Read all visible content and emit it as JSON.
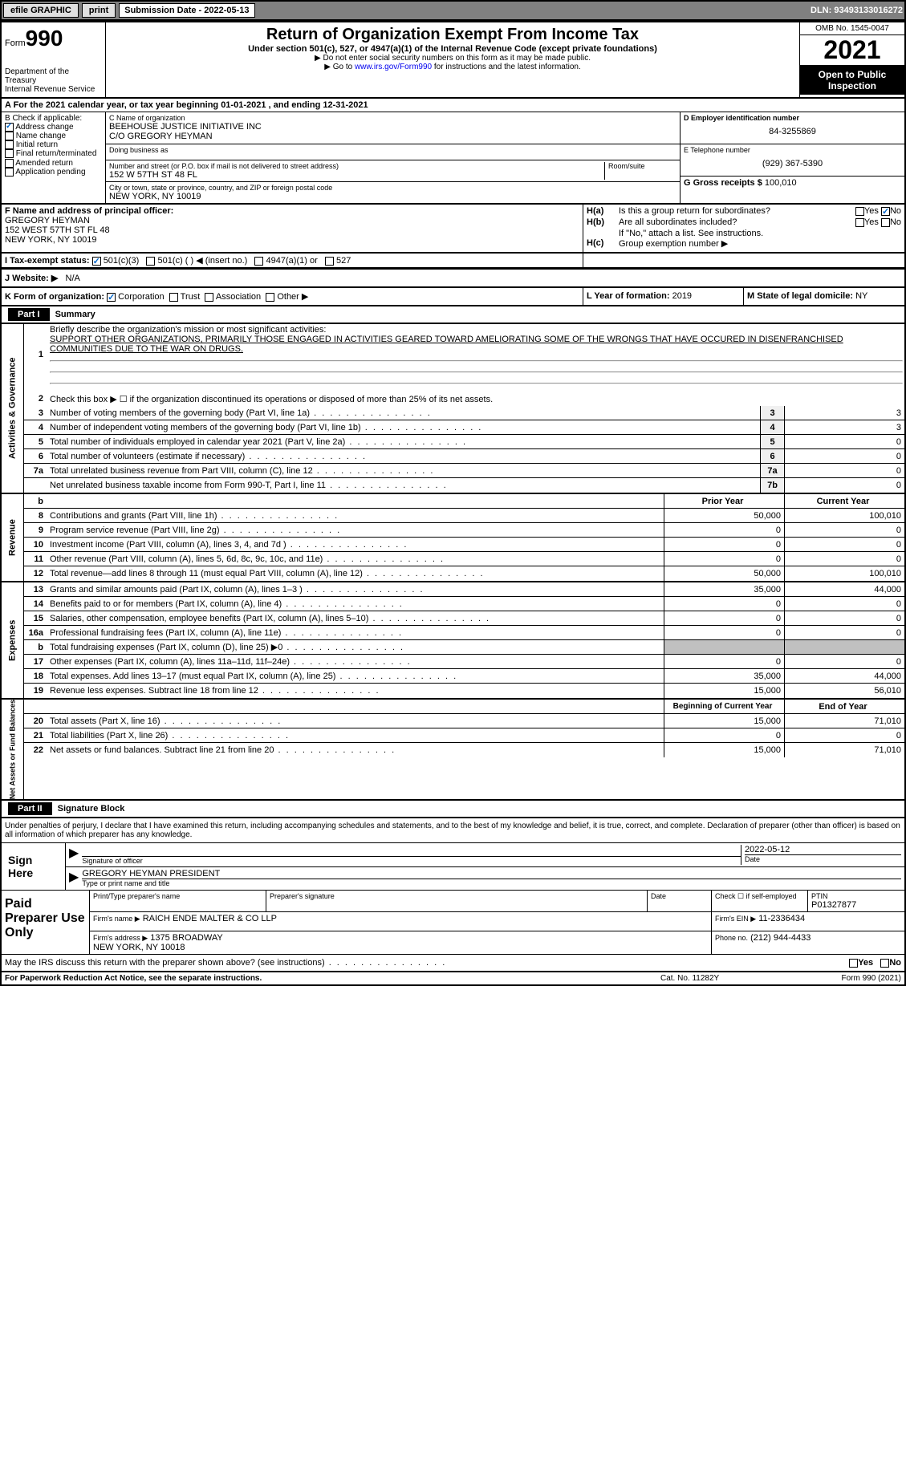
{
  "toolbar": {
    "efile": "efile GRAPHIC",
    "print": "print",
    "sub_label": "Submission Date - 2022-05-13",
    "dln": "DLN: 93493133016272"
  },
  "header": {
    "form_label": "Form",
    "form_num": "990",
    "dept": "Department of the Treasury\nInternal Revenue Service",
    "title": "Return of Organization Exempt From Income Tax",
    "subtitle": "Under section 501(c), 527, or 4947(a)(1) of the Internal Revenue Code (except private foundations)",
    "note1": "▶ Do not enter social security numbers on this form as it may be made public.",
    "note2_pre": "▶ Go to ",
    "note2_link": "www.irs.gov/Form990",
    "note2_post": " for instructions and the latest information.",
    "omb": "OMB No. 1545-0047",
    "year": "2021",
    "open": "Open to Public Inspection"
  },
  "row_a": "A For the 2021 calendar year, or tax year beginning 01-01-2021     , and ending 12-31-2021",
  "section_b": {
    "label": "B Check if applicable:",
    "items": [
      "Address change",
      "Name change",
      "Initial return",
      "Final return/terminated",
      "Amended return",
      "Application pending"
    ]
  },
  "section_c": {
    "name_label": "C Name of organization",
    "name": "BEEHOUSE JUSTICE INITIATIVE INC\nC/O GREGORY HEYMAN",
    "dba_label": "Doing business as",
    "street_label": "Number and street (or P.O. box if mail is not delivered to street address)",
    "room_label": "Room/suite",
    "street": "152 W 57TH ST 48 FL",
    "city_label": "City or town, state or province, country, and ZIP or foreign postal code",
    "city": "NEW YORK, NY  10019"
  },
  "section_d": {
    "label": "D Employer identification number",
    "value": "84-3255869"
  },
  "section_e": {
    "label": "E Telephone number",
    "value": "(929) 367-5390"
  },
  "section_g": {
    "label": "G Gross receipts $",
    "value": "100,010"
  },
  "section_f": {
    "label": "F Name and address of principal officer:",
    "value": "GREGORY HEYMAN\n152 WEST 57TH ST FL 48\nNEW YORK, NY  10019"
  },
  "section_h": {
    "a_label": "H(a)",
    "a_text": "Is this a group return for subordinates?",
    "b_label": "H(b)",
    "b_text": "Are all subordinates included?",
    "b_note": "If \"No,\" attach a list. See instructions.",
    "c_label": "H(c)",
    "c_text": "Group exemption number ▶"
  },
  "row_i": {
    "label": "I   Tax-exempt status:",
    "opts": [
      "501(c)(3)",
      "501(c) (  ) ◀ (insert no.)",
      "4947(a)(1) or",
      "527"
    ]
  },
  "row_j": {
    "label": "J   Website: ▶",
    "value": "N/A"
  },
  "row_k": {
    "k_label": "K Form of organization:",
    "opts": [
      "Corporation",
      "Trust",
      "Association",
      "Other ▶"
    ],
    "l_label": "L Year of formation:",
    "l_value": "2019",
    "m_label": "M State of legal domicile:",
    "m_value": "NY"
  },
  "part1": {
    "header": "Part I",
    "title": "Summary",
    "tabs": {
      "ag": "Activities & Governance",
      "rev": "Revenue",
      "exp": "Expenses",
      "net": "Net Assets or Fund Balances"
    },
    "line1_label": "Briefly describe the organization's mission or most significant activities:",
    "line1_text": "SUPPORT OTHER ORGANIZATIONS, PRIMARILY THOSE ENGAGED IN ACTIVITIES GEARED TOWARD AMELIORATING SOME OF THE WRONGS THAT HAVE OCCURED IN DISENFRANCHISED COMMUNITIES DUE TO THE WAR ON DRUGS.",
    "line2": "Check this box ▶ ☐  if the organization discontinued its operations or disposed of more than 25% of its net assets.",
    "rows_ag": [
      {
        "n": "3",
        "t": "Number of voting members of the governing body (Part VI, line 1a)",
        "b": "3",
        "v": "3"
      },
      {
        "n": "4",
        "t": "Number of independent voting members of the governing body (Part VI, line 1b)",
        "b": "4",
        "v": "3"
      },
      {
        "n": "5",
        "t": "Total number of individuals employed in calendar year 2021 (Part V, line 2a)",
        "b": "5",
        "v": "0"
      },
      {
        "n": "6",
        "t": "Total number of volunteers (estimate if necessary)",
        "b": "6",
        "v": "0"
      },
      {
        "n": "7a",
        "t": "Total unrelated business revenue from Part VIII, column (C), line 12",
        "b": "7a",
        "v": "0"
      },
      {
        "n": "",
        "t": "Net unrelated business taxable income from Form 990-T, Part I, line 11",
        "b": "7b",
        "v": "0"
      }
    ],
    "col_headers": {
      "b": "b",
      "prior": "Prior Year",
      "current": "Current Year"
    },
    "rows_rev": [
      {
        "n": "8",
        "t": "Contributions and grants (Part VIII, line 1h)",
        "p": "50,000",
        "c": "100,010"
      },
      {
        "n": "9",
        "t": "Program service revenue (Part VIII, line 2g)",
        "p": "0",
        "c": "0"
      },
      {
        "n": "10",
        "t": "Investment income (Part VIII, column (A), lines 3, 4, and 7d )",
        "p": "0",
        "c": "0"
      },
      {
        "n": "11",
        "t": "Other revenue (Part VIII, column (A), lines 5, 6d, 8c, 9c, 10c, and 11e)",
        "p": "0",
        "c": "0"
      },
      {
        "n": "12",
        "t": "Total revenue—add lines 8 through 11 (must equal Part VIII, column (A), line 12)",
        "p": "50,000",
        "c": "100,010"
      }
    ],
    "rows_exp": [
      {
        "n": "13",
        "t": "Grants and similar amounts paid (Part IX, column (A), lines 1–3 )",
        "p": "35,000",
        "c": "44,000"
      },
      {
        "n": "14",
        "t": "Benefits paid to or for members (Part IX, column (A), line 4)",
        "p": "0",
        "c": "0"
      },
      {
        "n": "15",
        "t": "Salaries, other compensation, employee benefits (Part IX, column (A), lines 5–10)",
        "p": "0",
        "c": "0"
      },
      {
        "n": "16a",
        "t": "Professional fundraising fees (Part IX, column (A), line 11e)",
        "p": "0",
        "c": "0"
      },
      {
        "n": "b",
        "t": "Total fundraising expenses (Part IX, column (D), line 25) ▶0",
        "p": "",
        "c": "",
        "shaded": true
      },
      {
        "n": "17",
        "t": "Other expenses (Part IX, column (A), lines 11a–11d, 11f–24e)",
        "p": "0",
        "c": "0"
      },
      {
        "n": "18",
        "t": "Total expenses. Add lines 13–17 (must equal Part IX, column (A), line 25)",
        "p": "35,000",
        "c": "44,000"
      },
      {
        "n": "19",
        "t": "Revenue less expenses. Subtract line 18 from line 12",
        "p": "15,000",
        "c": "56,010"
      }
    ],
    "net_headers": {
      "begin": "Beginning of Current Year",
      "end": "End of Year"
    },
    "rows_net": [
      {
        "n": "20",
        "t": "Total assets (Part X, line 16)",
        "p": "15,000",
        "c": "71,010"
      },
      {
        "n": "21",
        "t": "Total liabilities (Part X, line 26)",
        "p": "0",
        "c": "0"
      },
      {
        "n": "22",
        "t": "Net assets or fund balances. Subtract line 21 from line 20",
        "p": "15,000",
        "c": "71,010"
      }
    ]
  },
  "part2": {
    "header": "Part II",
    "title": "Signature Block",
    "declare": "Under penalties of perjury, I declare that I have examined this return, including accompanying schedules and statements, and to the best of my knowledge and belief, it is true, correct, and complete. Declaration of preparer (other than officer) is based on all information of which preparer has any knowledge.",
    "sign_here": "Sign Here",
    "sig_officer": "Signature of officer",
    "sig_date": "2022-05-12",
    "date_label": "Date",
    "officer_name": "GREGORY HEYMAN  PRESIDENT",
    "officer_label": "Type or print name and title",
    "paid": "Paid Preparer Use Only",
    "prep_name_label": "Print/Type preparer's name",
    "prep_sig_label": "Preparer's signature",
    "prep_date_label": "Date",
    "prep_check": "Check ☐ if self-employed",
    "ptin_label": "PTIN",
    "ptin": "P01327877",
    "firm_name_label": "Firm's name    ▶",
    "firm_name": "RAICH ENDE MALTER & CO LLP",
    "firm_ein_label": "Firm's EIN ▶",
    "firm_ein": "11-2336434",
    "firm_addr_label": "Firm's address ▶",
    "firm_addr": "1375 BROADWAY\nNEW YORK, NY  10018",
    "phone_label": "Phone no.",
    "phone": "(212) 944-4433",
    "discuss": "May the IRS discuss this return with the preparer shown above? (see instructions)",
    "yes": "Yes",
    "no": "No"
  },
  "footer": {
    "left": "For Paperwork Reduction Act Notice, see the separate instructions.",
    "mid": "Cat. No. 11282Y",
    "right": "Form 990 (2021)"
  }
}
